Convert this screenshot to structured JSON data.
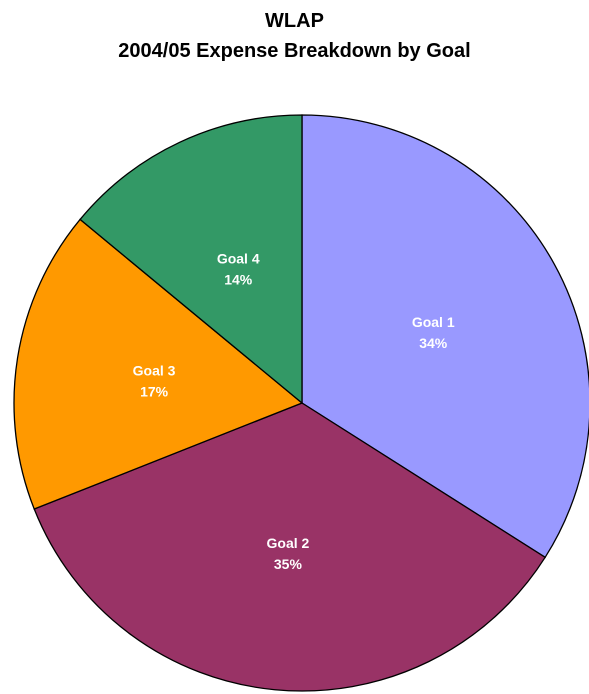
{
  "chart_data": {
    "type": "pie",
    "title": "WLAP",
    "subtitle": "2004/05 Expense Breakdown by Goal",
    "categories": [
      "Goal 1",
      "Goal 2",
      "Goal 3",
      "Goal 4"
    ],
    "values": [
      34,
      35,
      17,
      14
    ],
    "value_labels": [
      "34%",
      "35%",
      "17%",
      "14%"
    ],
    "colors": [
      "#9999FF",
      "#993366",
      "#FF9900",
      "#339966"
    ],
    "start_angle": "12 o'clock",
    "direction": "clockwise",
    "legend": "none",
    "labels_inside": true
  }
}
